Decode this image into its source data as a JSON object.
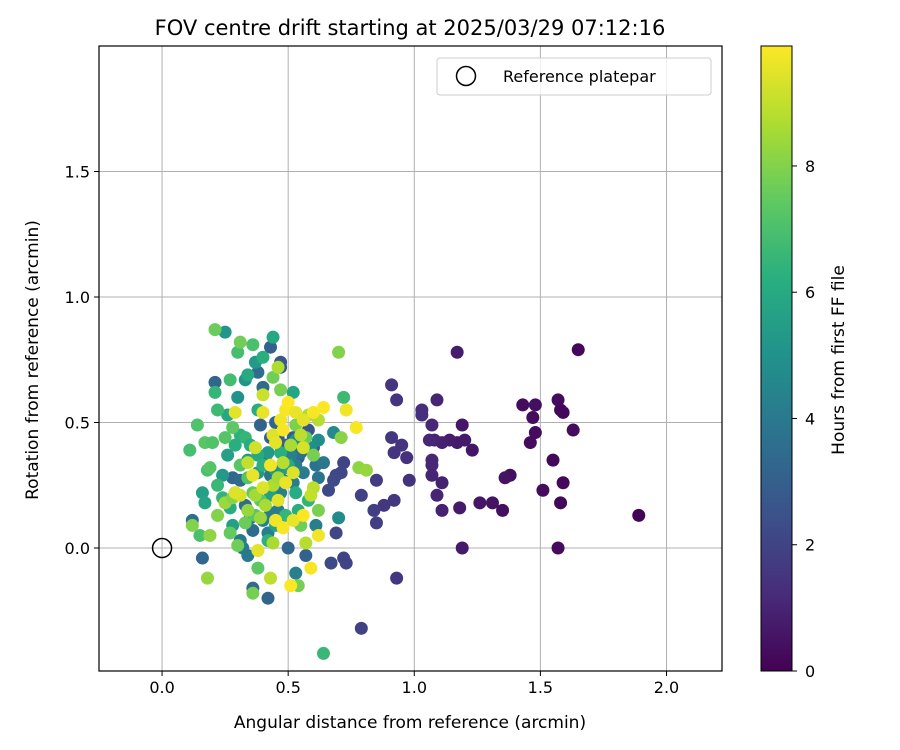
{
  "chart_data": {
    "type": "scatter",
    "title": "FOV centre drift starting at 2025/03/29 07:12:16",
    "xlabel": "Angular distance from reference (arcmin)",
    "ylabel": "Rotation from reference (arcmin)",
    "xlim": [
      -0.25,
      2.22
    ],
    "ylim": [
      -0.49,
      2.0
    ],
    "xticks": [
      0.0,
      0.5,
      1.0,
      1.5,
      2.0
    ],
    "xtick_labels": [
      "0.0",
      "0.5",
      "1.0",
      "1.5",
      "2.0"
    ],
    "yticks": [
      0.0,
      0.5,
      1.0,
      1.5
    ],
    "ytick_labels": [
      "0.0",
      "0.5",
      "1.0",
      "1.5"
    ],
    "grid": true,
    "legend": {
      "position": "top-right",
      "entries": [
        {
          "label": "Reference platepar",
          "marker": "hollow-circle"
        }
      ]
    },
    "reference_point": {
      "x": 0.0,
      "y": 0.0
    },
    "colorbar": {
      "label": "Hours from first FF file",
      "colormap": "viridis",
      "range": [
        0,
        9.9
      ],
      "ticks": [
        0,
        2,
        4,
        6,
        8
      ],
      "tick_labels": [
        "0",
        "2",
        "4",
        "6",
        "8"
      ]
    },
    "points": [
      {
        "x": 1.65,
        "y": 0.79,
        "h": 0.2
      },
      {
        "x": 1.89,
        "y": 0.13,
        "h": 0.1
      },
      {
        "x": 1.57,
        "y": 0.59,
        "h": 0.3
      },
      {
        "x": 1.58,
        "y": 0.55,
        "h": 0.2
      },
      {
        "x": 1.59,
        "y": 0.54,
        "h": 0.2
      },
      {
        "x": 1.63,
        "y": 0.47,
        "h": 0.3
      },
      {
        "x": 1.48,
        "y": 0.57,
        "h": 0.4
      },
      {
        "x": 1.43,
        "y": 0.57,
        "h": 0.3
      },
      {
        "x": 1.47,
        "y": 0.52,
        "h": 0.3
      },
      {
        "x": 1.48,
        "y": 0.46,
        "h": 0.3
      },
      {
        "x": 1.46,
        "y": 0.42,
        "h": 0.3
      },
      {
        "x": 1.55,
        "y": 0.35,
        "h": 0.2
      },
      {
        "x": 1.51,
        "y": 0.23,
        "h": 0.3
      },
      {
        "x": 1.59,
        "y": 0.26,
        "h": 0.2
      },
      {
        "x": 1.58,
        "y": 0.18,
        "h": 0.2
      },
      {
        "x": 1.57,
        "y": 0.0,
        "h": 0.3
      },
      {
        "x": 1.38,
        "y": 0.29,
        "h": 0.4
      },
      {
        "x": 1.36,
        "y": 0.28,
        "h": 0.5
      },
      {
        "x": 1.31,
        "y": 0.18,
        "h": 0.5
      },
      {
        "x": 1.26,
        "y": 0.18,
        "h": 0.6
      },
      {
        "x": 1.35,
        "y": 0.15,
        "h": 0.4
      },
      {
        "x": 1.17,
        "y": 0.78,
        "h": 0.8
      },
      {
        "x": 1.19,
        "y": 0.49,
        "h": 0.6
      },
      {
        "x": 1.23,
        "y": 0.39,
        "h": 0.6
      },
      {
        "x": 1.2,
        "y": 0.43,
        "h": 0.7
      },
      {
        "x": 1.17,
        "y": 0.42,
        "h": 0.7
      },
      {
        "x": 1.14,
        "y": 0.43,
        "h": 0.8
      },
      {
        "x": 1.11,
        "y": 0.42,
        "h": 0.9
      },
      {
        "x": 1.08,
        "y": 0.43,
        "h": 1.0
      },
      {
        "x": 1.06,
        "y": 0.43,
        "h": 1.1
      },
      {
        "x": 1.09,
        "y": 0.59,
        "h": 1.0
      },
      {
        "x": 1.07,
        "y": 0.49,
        "h": 1.1
      },
      {
        "x": 1.03,
        "y": 0.55,
        "h": 1.3
      },
      {
        "x": 1.03,
        "y": 0.53,
        "h": 1.3
      },
      {
        "x": 1.07,
        "y": 0.35,
        "h": 1.1
      },
      {
        "x": 1.07,
        "y": 0.33,
        "h": 1.1
      },
      {
        "x": 1.07,
        "y": 0.29,
        "h": 1.0
      },
      {
        "x": 1.11,
        "y": 0.26,
        "h": 0.9
      },
      {
        "x": 1.09,
        "y": 0.21,
        "h": 1.0
      },
      {
        "x": 1.11,
        "y": 0.15,
        "h": 0.9
      },
      {
        "x": 1.18,
        "y": 0.16,
        "h": 0.7
      },
      {
        "x": 1.19,
        "y": 0.0,
        "h": 0.7
      },
      {
        "x": 0.91,
        "y": 0.65,
        "h": 1.5
      },
      {
        "x": 0.93,
        "y": 0.59,
        "h": 1.5
      },
      {
        "x": 0.91,
        "y": 0.44,
        "h": 1.6
      },
      {
        "x": 0.95,
        "y": 0.41,
        "h": 1.5
      },
      {
        "x": 0.92,
        "y": 0.38,
        "h": 1.5
      },
      {
        "x": 0.97,
        "y": 0.36,
        "h": 1.4
      },
      {
        "x": 0.98,
        "y": 0.27,
        "h": 1.4
      },
      {
        "x": 0.92,
        "y": 0.19,
        "h": 1.6
      },
      {
        "x": 0.88,
        "y": 0.17,
        "h": 1.6
      },
      {
        "x": 0.85,
        "y": 0.27,
        "h": 1.7
      },
      {
        "x": 0.84,
        "y": 0.15,
        "h": 1.8
      },
      {
        "x": 0.85,
        "y": 0.1,
        "h": 1.8
      },
      {
        "x": 0.93,
        "y": -0.12,
        "h": 1.6
      },
      {
        "x": 0.79,
        "y": 0.21,
        "h": 1.9
      },
      {
        "x": 0.79,
        "y": -0.32,
        "h": 1.9
      },
      {
        "x": 0.72,
        "y": 0.34,
        "h": 2.0
      },
      {
        "x": 0.71,
        "y": 0.3,
        "h": 2.1
      },
      {
        "x": 0.69,
        "y": 0.29,
        "h": 2.1
      },
      {
        "x": 0.68,
        "y": 0.27,
        "h": 2.2
      },
      {
        "x": 0.66,
        "y": 0.23,
        "h": 2.2
      },
      {
        "x": 0.69,
        "y": 0.06,
        "h": 2.1
      },
      {
        "x": 0.72,
        "y": -0.04,
        "h": 2.0
      },
      {
        "x": 0.73,
        "y": -0.06,
        "h": 2.0
      },
      {
        "x": 0.67,
        "y": -0.06,
        "h": 2.2
      },
      {
        "x": 0.58,
        "y": 0.47,
        "h": 2.6
      },
      {
        "x": 0.56,
        "y": 0.42,
        "h": 2.7
      },
      {
        "x": 0.6,
        "y": 0.4,
        "h": 2.5
      },
      {
        "x": 0.54,
        "y": 0.36,
        "h": 2.8
      },
      {
        "x": 0.47,
        "y": 0.74,
        "h": 2.7
      },
      {
        "x": 0.47,
        "y": 0.72,
        "h": 2.8
      },
      {
        "x": 0.43,
        "y": 0.8,
        "h": 3.0
      },
      {
        "x": 0.39,
        "y": 0.49,
        "h": 3.1
      },
      {
        "x": 0.43,
        "y": 0.44,
        "h": 3.0
      },
      {
        "x": 0.46,
        "y": 0.44,
        "h": 2.9
      },
      {
        "x": 0.49,
        "y": 0.41,
        "h": 3.0
      },
      {
        "x": 0.52,
        "y": 0.44,
        "h": 2.9
      },
      {
        "x": 0.41,
        "y": 0.35,
        "h": 3.0
      },
      {
        "x": 0.5,
        "y": 0.0,
        "h": 3.3
      },
      {
        "x": 0.57,
        "y": -0.03,
        "h": 3.1
      },
      {
        "x": 0.42,
        "y": -0.2,
        "h": 3.2
      },
      {
        "x": 0.36,
        "y": -0.16,
        "h": 3.4
      },
      {
        "x": 0.16,
        "y": -0.04,
        "h": 3.3
      },
      {
        "x": 0.12,
        "y": 0.11,
        "h": 3.6
      },
      {
        "x": 0.45,
        "y": 0.5,
        "h": 3.2
      },
      {
        "x": 0.4,
        "y": 0.64,
        "h": 3.4
      },
      {
        "x": 0.38,
        "y": 0.7,
        "h": 3.5
      },
      {
        "x": 0.21,
        "y": 0.66,
        "h": 3.3
      },
      {
        "x": 0.28,
        "y": 0.28,
        "h": 3.3
      },
      {
        "x": 0.31,
        "y": 0.27,
        "h": 3.4
      },
      {
        "x": 0.33,
        "y": 0.17,
        "h": 3.5
      },
      {
        "x": 0.35,
        "y": 0.12,
        "h": 3.6
      },
      {
        "x": 0.36,
        "y": 0.07,
        "h": 3.5
      },
      {
        "x": 0.43,
        "y": 0.29,
        "h": 3.8
      },
      {
        "x": 0.55,
        "y": 0.38,
        "h": 3.6
      },
      {
        "x": 0.61,
        "y": 0.33,
        "h": 3.7
      },
      {
        "x": 0.64,
        "y": 0.34,
        "h": 3.9
      },
      {
        "x": 0.62,
        "y": 0.28,
        "h": 3.8
      },
      {
        "x": 0.56,
        "y": 0.3,
        "h": 4.1
      },
      {
        "x": 0.53,
        "y": 0.33,
        "h": 4.2
      },
      {
        "x": 0.51,
        "y": 0.37,
        "h": 4.3
      },
      {
        "x": 0.52,
        "y": 0.26,
        "h": 4.2
      },
      {
        "x": 0.48,
        "y": 0.27,
        "h": 4.4
      },
      {
        "x": 0.47,
        "y": 0.22,
        "h": 4.3
      },
      {
        "x": 0.46,
        "y": 0.15,
        "h": 4.2
      },
      {
        "x": 0.43,
        "y": 0.14,
        "h": 4.1
      },
      {
        "x": 0.4,
        "y": 0.11,
        "h": 4.3
      },
      {
        "x": 0.42,
        "y": 0.06,
        "h": 4.2
      },
      {
        "x": 0.31,
        "y": 0.03,
        "h": 4.0
      },
      {
        "x": 0.32,
        "y": 0.0,
        "h": 4.1
      },
      {
        "x": 0.34,
        "y": -0.03,
        "h": 4.0
      },
      {
        "x": 0.53,
        "y": -0.1,
        "h": 4.3
      },
      {
        "x": 0.61,
        "y": 0.09,
        "h": 4.2
      },
      {
        "x": 0.68,
        "y": 0.46,
        "h": 4.6
      },
      {
        "x": 0.7,
        "y": 0.12,
        "h": 4.7
      },
      {
        "x": 0.62,
        "y": 0.43,
        "h": 4.8
      },
      {
        "x": 0.59,
        "y": 0.4,
        "h": 4.9
      },
      {
        "x": 0.53,
        "y": 0.43,
        "h": 5.0
      },
      {
        "x": 0.49,
        "y": 0.32,
        "h": 5.2
      },
      {
        "x": 0.45,
        "y": 0.31,
        "h": 5.1
      },
      {
        "x": 0.42,
        "y": 0.38,
        "h": 5.3
      },
      {
        "x": 0.38,
        "y": 0.3,
        "h": 5.2
      },
      {
        "x": 0.34,
        "y": 0.35,
        "h": 5.2
      },
      {
        "x": 0.3,
        "y": 0.6,
        "h": 5.0
      },
      {
        "x": 0.33,
        "y": 0.67,
        "h": 5.1
      },
      {
        "x": 0.37,
        "y": 0.74,
        "h": 5.3
      },
      {
        "x": 0.25,
        "y": 0.86,
        "h": 5.1
      },
      {
        "x": 0.24,
        "y": 0.29,
        "h": 5.3
      },
      {
        "x": 0.26,
        "y": 0.37,
        "h": 5.6
      },
      {
        "x": 0.29,
        "y": 0.22,
        "h": 5.5
      },
      {
        "x": 0.43,
        "y": 0.21,
        "h": 5.6
      },
      {
        "x": 0.45,
        "y": 0.09,
        "h": 5.7
      },
      {
        "x": 0.28,
        "y": 0.09,
        "h": 5.6
      },
      {
        "x": 0.16,
        "y": 0.22,
        "h": 5.6
      },
      {
        "x": 0.17,
        "y": 0.18,
        "h": 5.8
      },
      {
        "x": 0.44,
        "y": 0.84,
        "h": 5.9
      },
      {
        "x": 0.52,
        "y": 0.62,
        "h": 5.8
      },
      {
        "x": 0.26,
        "y": 0.53,
        "h": 5.9
      },
      {
        "x": 0.34,
        "y": 0.69,
        "h": 6.0
      },
      {
        "x": 0.4,
        "y": 0.76,
        "h": 6.2
      },
      {
        "x": 0.38,
        "y": 0.55,
        "h": 6.1
      },
      {
        "x": 0.29,
        "y": 0.41,
        "h": 6.2
      },
      {
        "x": 0.31,
        "y": 0.45,
        "h": 6.3
      },
      {
        "x": 0.33,
        "y": 0.44,
        "h": 6.5
      },
      {
        "x": 0.35,
        "y": 0.41,
        "h": 6.1
      },
      {
        "x": 0.38,
        "y": 0.37,
        "h": 6.0
      },
      {
        "x": 0.4,
        "y": 0.33,
        "h": 6.3
      },
      {
        "x": 0.47,
        "y": 0.38,
        "h": 6.2
      },
      {
        "x": 0.5,
        "y": 0.33,
        "h": 6.0
      },
      {
        "x": 0.53,
        "y": 0.22,
        "h": 6.1
      },
      {
        "x": 0.58,
        "y": 0.19,
        "h": 6.4
      },
      {
        "x": 0.54,
        "y": 0.15,
        "h": 6.2
      },
      {
        "x": 0.49,
        "y": 0.13,
        "h": 6.5
      },
      {
        "x": 0.42,
        "y": 0.03,
        "h": 6.3
      },
      {
        "x": 0.27,
        "y": 0.16,
        "h": 6.1
      },
      {
        "x": 0.24,
        "y": 0.2,
        "h": 6.4
      },
      {
        "x": 0.22,
        "y": 0.25,
        "h": 6.6
      },
      {
        "x": 0.21,
        "y": 0.62,
        "h": 6.5
      },
      {
        "x": 0.22,
        "y": 0.55,
        "h": 6.7
      },
      {
        "x": 0.27,
        "y": 0.67,
        "h": 6.8
      },
      {
        "x": 0.3,
        "y": 0.78,
        "h": 6.9
      },
      {
        "x": 0.36,
        "y": 0.81,
        "h": 7.0
      },
      {
        "x": 0.72,
        "y": 0.6,
        "h": 6.7
      },
      {
        "x": 0.64,
        "y": -0.42,
        "h": 6.6
      },
      {
        "x": 0.15,
        "y": 0.05,
        "h": 7.0
      },
      {
        "x": 0.11,
        "y": 0.39,
        "h": 6.9
      },
      {
        "x": 0.14,
        "y": 0.49,
        "h": 7.1
      },
      {
        "x": 0.18,
        "y": 0.31,
        "h": 7.0
      },
      {
        "x": 0.19,
        "y": 0.32,
        "h": 7.2
      },
      {
        "x": 0.17,
        "y": 0.42,
        "h": 7.3
      },
      {
        "x": 0.2,
        "y": 0.42,
        "h": 7.1
      },
      {
        "x": 0.25,
        "y": 0.44,
        "h": 7.2
      },
      {
        "x": 0.28,
        "y": 0.48,
        "h": 7.4
      },
      {
        "x": 0.31,
        "y": 0.33,
        "h": 7.3
      },
      {
        "x": 0.34,
        "y": 0.28,
        "h": 7.2
      },
      {
        "x": 0.36,
        "y": 0.22,
        "h": 7.5
      },
      {
        "x": 0.39,
        "y": 0.19,
        "h": 7.4
      },
      {
        "x": 0.37,
        "y": 0.13,
        "h": 7.3
      },
      {
        "x": 0.33,
        "y": 0.1,
        "h": 7.6
      },
      {
        "x": 0.27,
        "y": 0.06,
        "h": 7.5
      },
      {
        "x": 0.3,
        "y": 0.01,
        "h": 7.7
      },
      {
        "x": 0.38,
        "y": -0.08,
        "h": 7.4
      },
      {
        "x": 0.36,
        "y": -0.18,
        "h": 7.8
      },
      {
        "x": 0.21,
        "y": 0.87,
        "h": 7.6
      },
      {
        "x": 0.31,
        "y": 0.82,
        "h": 7.7
      },
      {
        "x": 0.44,
        "y": 0.68,
        "h": 7.7
      },
      {
        "x": 0.47,
        "y": 0.63,
        "h": 7.8
      },
      {
        "x": 0.53,
        "y": 0.49,
        "h": 7.9
      },
      {
        "x": 0.57,
        "y": 0.44,
        "h": 7.6
      },
      {
        "x": 0.6,
        "y": 0.37,
        "h": 7.8
      },
      {
        "x": 0.62,
        "y": 0.15,
        "h": 7.9
      },
      {
        "x": 0.55,
        "y": 0.09,
        "h": 7.7
      },
      {
        "x": 0.54,
        "y": -0.15,
        "h": 7.8
      },
      {
        "x": 0.7,
        "y": 0.78,
        "h": 8.0
      },
      {
        "x": 0.71,
        "y": 0.44,
        "h": 8.1
      },
      {
        "x": 0.78,
        "y": 0.32,
        "h": 8.2
      },
      {
        "x": 0.81,
        "y": 0.31,
        "h": 8.3
      },
      {
        "x": 0.12,
        "y": 0.09,
        "h": 8.0
      },
      {
        "x": 0.18,
        "y": -0.12,
        "h": 8.3
      },
      {
        "x": 0.19,
        "y": 0.05,
        "h": 8.2
      },
      {
        "x": 0.22,
        "y": 0.13,
        "h": 8.0
      },
      {
        "x": 0.25,
        "y": 0.18,
        "h": 8.4
      },
      {
        "x": 0.28,
        "y": 0.2,
        "h": 8.1
      },
      {
        "x": 0.34,
        "y": 0.15,
        "h": 8.3
      },
      {
        "x": 0.37,
        "y": 0.21,
        "h": 8.5
      },
      {
        "x": 0.39,
        "y": 0.12,
        "h": 8.4
      },
      {
        "x": 0.41,
        "y": 0.17,
        "h": 8.6
      },
      {
        "x": 0.44,
        "y": 0.25,
        "h": 8.7
      },
      {
        "x": 0.46,
        "y": 0.28,
        "h": 8.5
      },
      {
        "x": 0.48,
        "y": 0.34,
        "h": 8.8
      },
      {
        "x": 0.51,
        "y": 0.41,
        "h": 8.6
      },
      {
        "x": 0.55,
        "y": 0.45,
        "h": 8.9
      },
      {
        "x": 0.58,
        "y": 0.53,
        "h": 8.7
      },
      {
        "x": 0.62,
        "y": 0.51,
        "h": 8.8
      },
      {
        "x": 0.6,
        "y": 0.24,
        "h": 8.9
      },
      {
        "x": 0.59,
        "y": 0.21,
        "h": 9.0
      },
      {
        "x": 0.57,
        "y": 0.02,
        "h": 8.8
      },
      {
        "x": 0.44,
        "y": 0.02,
        "h": 8.6
      },
      {
        "x": 0.43,
        "y": -0.12,
        "h": 8.9
      },
      {
        "x": 0.46,
        "y": 0.72,
        "h": 8.7
      },
      {
        "x": 0.4,
        "y": 0.61,
        "h": 9.1
      },
      {
        "x": 0.37,
        "y": 0.4,
        "h": 9.2
      },
      {
        "x": 0.34,
        "y": 0.34,
        "h": 9.0
      },
      {
        "x": 0.31,
        "y": 0.21,
        "h": 9.3
      },
      {
        "x": 0.29,
        "y": 0.22,
        "h": 9.4
      },
      {
        "x": 0.29,
        "y": 0.54,
        "h": 9.5
      },
      {
        "x": 0.4,
        "y": 0.54,
        "h": 9.6
      },
      {
        "x": 0.44,
        "y": 0.45,
        "h": 9.4
      },
      {
        "x": 0.47,
        "y": 0.51,
        "h": 9.7
      },
      {
        "x": 0.49,
        "y": 0.55,
        "h": 9.8
      },
      {
        "x": 0.5,
        "y": 0.58,
        "h": 9.9
      },
      {
        "x": 0.53,
        "y": 0.54,
        "h": 9.6
      },
      {
        "x": 0.56,
        "y": 0.51,
        "h": 9.5
      },
      {
        "x": 0.6,
        "y": 0.54,
        "h": 9.8
      },
      {
        "x": 0.64,
        "y": 0.56,
        "h": 9.9
      },
      {
        "x": 0.73,
        "y": 0.55,
        "h": 9.7
      },
      {
        "x": 0.77,
        "y": 0.48,
        "h": 9.8
      },
      {
        "x": 0.56,
        "y": 0.4,
        "h": 9.3
      },
      {
        "x": 0.52,
        "y": 0.3,
        "h": 9.4
      },
      {
        "x": 0.49,
        "y": 0.26,
        "h": 9.6
      },
      {
        "x": 0.46,
        "y": 0.19,
        "h": 9.5
      },
      {
        "x": 0.45,
        "y": 0.11,
        "h": 9.7
      },
      {
        "x": 0.48,
        "y": 0.08,
        "h": 9.8
      },
      {
        "x": 0.52,
        "y": 0.11,
        "h": 9.6
      },
      {
        "x": 0.56,
        "y": 0.13,
        "h": 9.9
      },
      {
        "x": 0.62,
        "y": 0.05,
        "h": 9.7
      },
      {
        "x": 0.59,
        "y": -0.08,
        "h": 9.8
      },
      {
        "x": 0.51,
        "y": -0.15,
        "h": 9.9
      },
      {
        "x": 0.38,
        "y": -0.01,
        "h": 9.5
      },
      {
        "x": 0.4,
        "y": 0.24,
        "h": 9.4
      },
      {
        "x": 0.36,
        "y": 0.29,
        "h": 9.6
      },
      {
        "x": 0.43,
        "y": 0.33,
        "h": 9.7
      },
      {
        "x": 0.45,
        "y": 0.42,
        "h": 9.5
      },
      {
        "x": 0.48,
        "y": 0.47,
        "h": 9.8
      }
    ]
  }
}
